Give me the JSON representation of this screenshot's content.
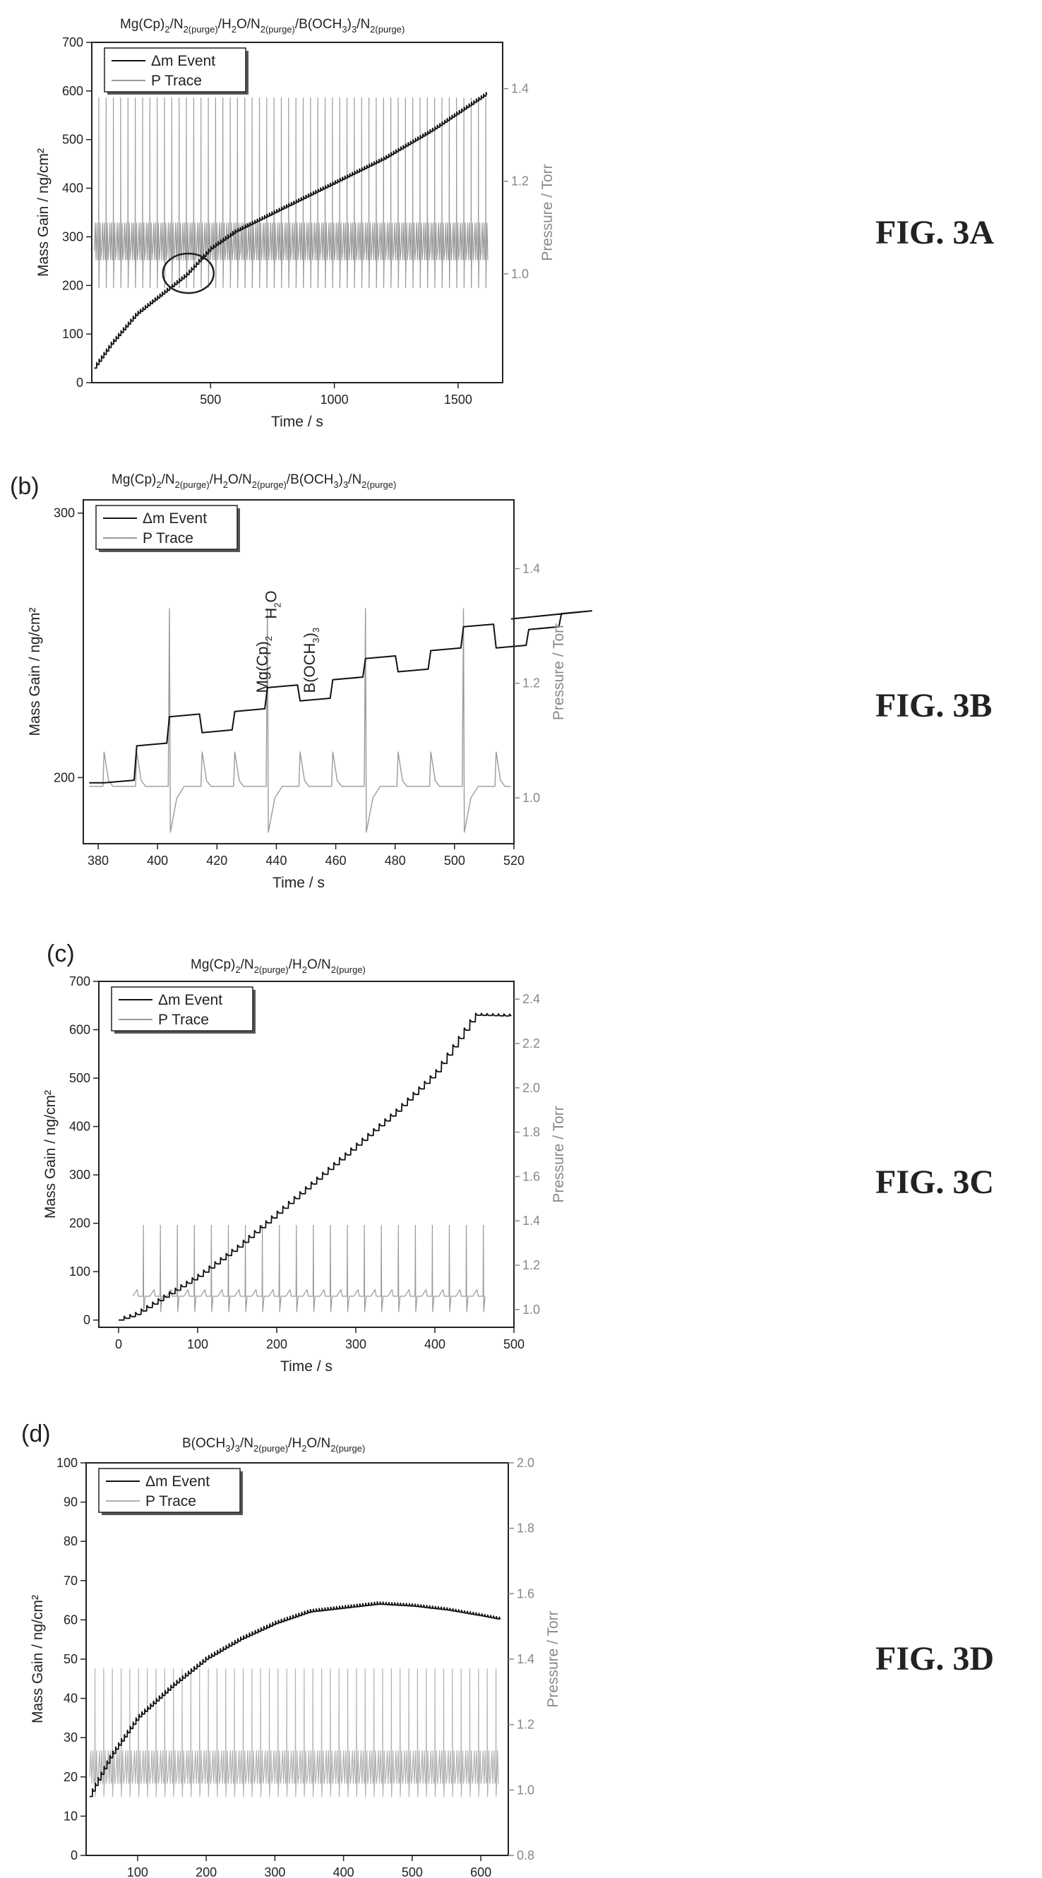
{
  "figure_labels": [
    "FIG. 3A",
    "FIG. 3B",
    "FIG. 3C",
    "FIG. 3D"
  ],
  "chart_data": [
    {
      "id": "a",
      "type": "line",
      "panel_label": "",
      "title": {
        "parts": [
          [
            "Mg(Cp)",
            "n"
          ],
          [
            "2",
            "sub"
          ],
          [
            "/N",
            "n"
          ],
          [
            "2(purge)",
            "sub"
          ],
          [
            "/H",
            "n"
          ],
          [
            "2",
            "sub"
          ],
          [
            "O/N",
            "n"
          ],
          [
            "2(purge)",
            "sub"
          ],
          [
            "/B(OCH",
            "n"
          ],
          [
            "3",
            "sub"
          ],
          [
            ")",
            "n"
          ],
          [
            "3",
            "sub"
          ],
          [
            "/N",
            "n"
          ],
          [
            "2(purge)",
            "sub"
          ]
        ]
      },
      "xlabel": "Time / s",
      "ylabel": "Mass Gain / ng/cm²",
      "ylabel_right": "Pressure / Torr",
      "xlim": [
        20,
        1680
      ],
      "ylim": [
        0,
        700
      ],
      "ylim_right": [
        0.765,
        1.5
      ],
      "xticks": [
        500,
        1000,
        1500
      ],
      "yticks": [
        0,
        100,
        200,
        300,
        400,
        500,
        600,
        700
      ],
      "yticks_right": [
        1.0,
        1.2,
        1.4
      ],
      "legend": {
        "position": "top-left",
        "entries": [
          "Δm Event",
          "P Trace"
        ]
      },
      "annotations": [
        {
          "type": "ellipse",
          "x": 410,
          "y": 225
        }
      ],
      "series": [
        {
          "name": "Δm Event",
          "axis": "left",
          "color": "#111111",
          "x": [
            30,
            100,
            200,
            300,
            400,
            500,
            600,
            800,
            1000,
            1200,
            1400,
            1620
          ],
          "y": [
            30,
            80,
            140,
            180,
            220,
            275,
            310,
            360,
            410,
            460,
            520,
            595
          ]
        },
        {
          "name": "P Trace",
          "axis": "right",
          "color": "#9a9a9a",
          "cycle_period_s": 29.5,
          "x_start": 30,
          "x_end": 1620,
          "baseline": 1.05,
          "band_low": 1.03,
          "band_high": 1.11,
          "spike_high": 1.38,
          "spike_low": 0.97
        }
      ]
    },
    {
      "id": "b",
      "type": "line",
      "panel_label": "(b)",
      "title": {
        "parts": [
          [
            "Mg(Cp)",
            "n"
          ],
          [
            "2",
            "sub"
          ],
          [
            "/N",
            "n"
          ],
          [
            "2(purge)",
            "sub"
          ],
          [
            "/H",
            "n"
          ],
          [
            "2",
            "sub"
          ],
          [
            "O/N",
            "n"
          ],
          [
            "2(purge)",
            "sub"
          ],
          [
            "/B(OCH",
            "n"
          ],
          [
            "3",
            "sub"
          ],
          [
            ")",
            "n"
          ],
          [
            "3",
            "sub"
          ],
          [
            "/N",
            "n"
          ],
          [
            "2(purge)",
            "sub"
          ]
        ]
      },
      "xlabel": "Time / s",
      "ylabel": "Mass Gain / ng/cm²",
      "ylabel_right": "Pressure / Torr",
      "xlim": [
        375,
        520
      ],
      "ylim": [
        175,
        305
      ],
      "ylim_right": [
        0.92,
        1.52
      ],
      "xticks": [
        380,
        400,
        420,
        440,
        460,
        480,
        500,
        520
      ],
      "yticks": [
        200,
        300
      ],
      "yticks_right": [
        1.0,
        1.2,
        1.4
      ],
      "legend": {
        "position": "top-left",
        "entries": [
          "Δm Event",
          "P Trace"
        ]
      },
      "annotations": [
        {
          "type": "text",
          "parts": [
            [
              "Mg(Cp)",
              "n"
            ],
            [
              "2",
              "sub"
            ]
          ],
          "x": 437,
          "y": 232
        },
        {
          "type": "text",
          "parts": [
            [
              "H",
              "n"
            ],
            [
              "2",
              "sub"
            ],
            [
              "O",
              "n"
            ]
          ],
          "x": 440,
          "y": 260
        },
        {
          "type": "text",
          "parts": [
            [
              "B(OCH",
              "n"
            ],
            [
              "3",
              "sub"
            ],
            [
              ")",
              "n"
            ],
            [
              "3",
              "sub"
            ]
          ],
          "x": 453,
          "y": 232
        }
      ],
      "series": [
        {
          "name": "Δm Event",
          "axis": "left",
          "color": "#111111",
          "cycle_start": 382,
          "cycle_period_s": 33,
          "first_level": 198,
          "cycle_levels": [
            [
              198,
              212,
              223
            ],
            [
              217,
              225,
              234
            ],
            [
              229,
              237,
              245
            ],
            [
              240,
              248,
              257
            ],
            [
              249,
              256,
              262
            ]
          ]
        },
        {
          "name": "P Trace",
          "axis": "right",
          "color": "#9a9a9a",
          "baseline": 1.02,
          "spike_high": 1.33,
          "spike_low": 0.98,
          "big_spike_times": [
            404,
            437,
            470,
            503
          ],
          "small_bump_times": [
            382,
            393,
            415,
            426,
            448,
            459,
            481,
            492,
            514
          ]
        }
      ]
    },
    {
      "id": "c",
      "type": "line",
      "panel_label": "(c)",
      "title": {
        "parts": [
          [
            "Mg(Cp)",
            "n"
          ],
          [
            "2",
            "sub"
          ],
          [
            "/N",
            "n"
          ],
          [
            "2(purge)",
            "sub"
          ],
          [
            "/H",
            "n"
          ],
          [
            "2",
            "sub"
          ],
          [
            "O/N",
            "n"
          ],
          [
            "2(purge)",
            "sub"
          ]
        ]
      },
      "xlabel": "Time / s",
      "ylabel": "Mass Gain / ng/cm²",
      "ylabel_right": "Pressure / Torr",
      "xlim": [
        -25,
        500
      ],
      "ylim": [
        -15,
        700
      ],
      "ylim_right": [
        0.92,
        2.48
      ],
      "xticks": [
        0,
        100,
        200,
        300,
        400,
        500
      ],
      "yticks": [
        0,
        100,
        200,
        300,
        400,
        500,
        600,
        700
      ],
      "yticks_right": [
        1.0,
        1.2,
        1.4,
        1.6,
        1.8,
        2.0,
        2.2,
        2.4
      ],
      "legend": {
        "position": "top-left",
        "entries": [
          "Δm Event",
          "P Trace"
        ]
      },
      "annotations": [],
      "series": [
        {
          "name": "Δm Event",
          "axis": "left",
          "color": "#111111",
          "x": [
            0,
            20,
            50,
            100,
            150,
            200,
            250,
            300,
            350,
            400,
            450,
            500
          ],
          "y": [
            0,
            10,
            40,
            90,
            150,
            220,
            290,
            360,
            430,
            510,
            630,
            628
          ]
        },
        {
          "name": "P Trace",
          "axis": "right",
          "color": "#9a9a9a",
          "cycle_period_s": 21.5,
          "x_start": 18,
          "x_end": 452,
          "baseline": 1.06,
          "spike_high": 1.38,
          "spike_low": 0.99
        }
      ]
    },
    {
      "id": "d",
      "type": "line",
      "panel_label": "(d)",
      "title": {
        "parts": [
          [
            "B(OCH",
            "n"
          ],
          [
            "3",
            "sub"
          ],
          [
            ")",
            "n"
          ],
          [
            "3",
            "sub"
          ],
          [
            "/N",
            "n"
          ],
          [
            "2(purge)",
            "sub"
          ],
          [
            "/H",
            "n"
          ],
          [
            "2",
            "sub"
          ],
          [
            "O/N",
            "n"
          ],
          [
            "2(purge)",
            "sub"
          ]
        ]
      },
      "xlabel": "Time / s",
      "ylabel": "Mass Gain / ng/cm²",
      "ylabel_right": "Pressure / Torr",
      "xlim": [
        25,
        640
      ],
      "ylim": [
        0,
        100
      ],
      "ylim_right": [
        0.8,
        2.0
      ],
      "xticks": [
        100,
        200,
        300,
        400,
        500,
        600
      ],
      "yticks": [
        0,
        10,
        20,
        30,
        40,
        50,
        60,
        70,
        80,
        90,
        100
      ],
      "yticks_right": [
        0.8,
        1.0,
        1.2,
        1.4,
        1.6,
        1.8,
        2.0
      ],
      "legend": {
        "position": "top-left",
        "entries": [
          "Δm Event",
          "P Trace"
        ]
      },
      "annotations": [],
      "series": [
        {
          "name": "Δm Event",
          "axis": "left",
          "color": "#111111",
          "x": [
            30,
            60,
            100,
            150,
            200,
            250,
            300,
            350,
            400,
            450,
            500,
            550,
            600,
            630
          ],
          "y": [
            15,
            25,
            35,
            43,
            50,
            55,
            59,
            62,
            63,
            64,
            63.5,
            62.5,
            61,
            60
          ]
        },
        {
          "name": "P Trace",
          "axis": "right",
          "color": "#b0b0b0",
          "cycle_period_s": 12.7,
          "x_start": 30,
          "x_end": 620,
          "baseline": 1.04,
          "band_low": 1.02,
          "band_high": 1.12,
          "spike_high": 1.37,
          "spike_low": 0.98
        }
      ]
    }
  ]
}
